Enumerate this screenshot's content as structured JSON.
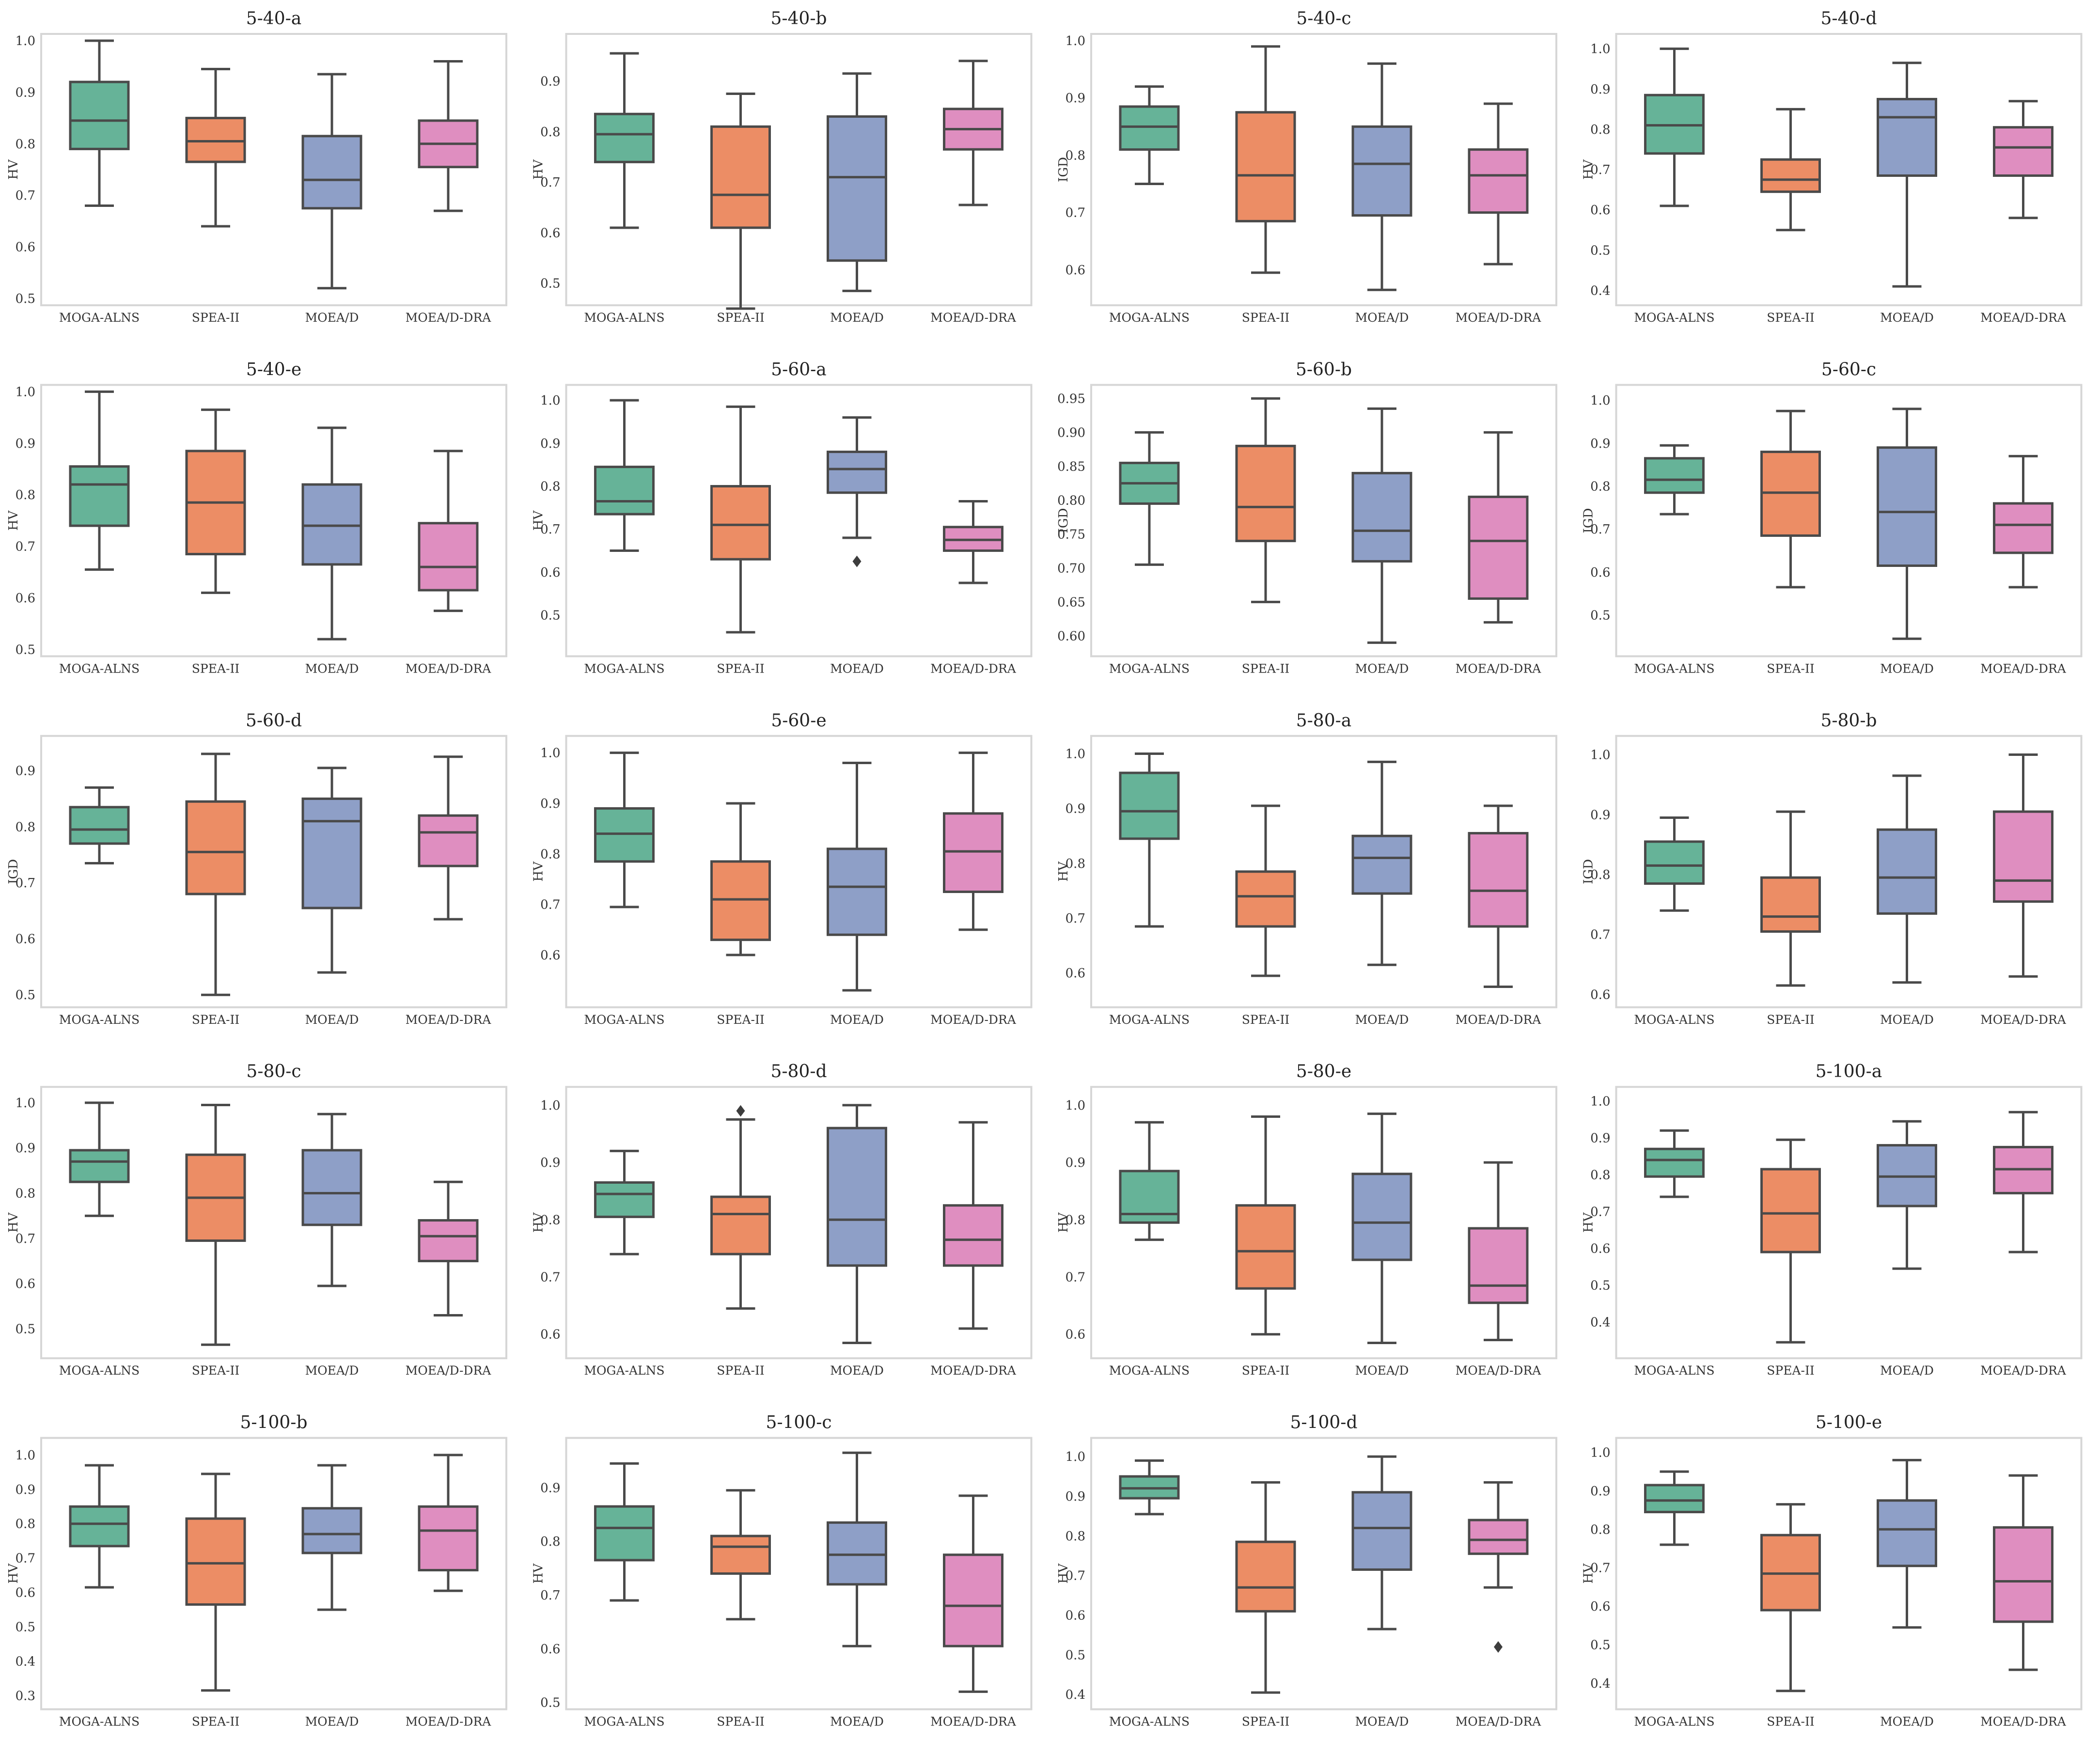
{
  "colors": {
    "MOGA-ALNS": "#66b398",
    "SPEA-II": "#ec8d65",
    "MOEA/D": "#8e9fc7",
    "MOEA/D-DRA": "#df8ec0"
  },
  "chart_data": [
    {
      "title": "5-40-a",
      "type": "box",
      "ylabel": "HV",
      "ylim": [
        0.5,
        1.0
      ],
      "yticks": [
        "0.5",
        "0.6",
        "0.7",
        "0.8",
        "0.9",
        "1.0"
      ],
      "categories": [
        "MOGA-ALNS",
        "SPEA-II",
        "MOEA/D",
        "MOEA/D-DRA"
      ],
      "boxes": [
        {
          "min": 0.68,
          "q1": 0.79,
          "median": 0.845,
          "q3": 0.92,
          "max": 1.0
        },
        {
          "min": 0.64,
          "q1": 0.765,
          "median": 0.805,
          "q3": 0.85,
          "max": 0.945
        },
        {
          "min": 0.52,
          "q1": 0.675,
          "median": 0.73,
          "q3": 0.815,
          "max": 0.935
        },
        {
          "min": 0.67,
          "q1": 0.755,
          "median": 0.8,
          "q3": 0.845,
          "max": 0.96
        }
      ],
      "outliers": []
    },
    {
      "title": "5-40-b",
      "type": "box",
      "ylabel": "HV",
      "ylim": [
        0.47,
        0.98
      ],
      "yticks": [
        "0.5",
        "0.6",
        "0.7",
        "0.8",
        "0.9"
      ],
      "categories": [
        "MOGA-ALNS",
        "SPEA-II",
        "MOEA/D",
        "MOEA/D-DRA"
      ],
      "boxes": [
        {
          "min": 0.61,
          "q1": 0.74,
          "median": 0.795,
          "q3": 0.835,
          "max": 0.955
        },
        {
          "min": 0.45,
          "q1": 0.61,
          "median": 0.675,
          "q3": 0.81,
          "max": 0.875
        },
        {
          "min": 0.485,
          "q1": 0.545,
          "median": 0.71,
          "q3": 0.83,
          "max": 0.915
        },
        {
          "min": 0.655,
          "q1": 0.765,
          "median": 0.805,
          "q3": 0.845,
          "max": 0.94
        }
      ],
      "outliers": []
    },
    {
      "title": "5-40-c",
      "type": "box",
      "ylabel": "IGD",
      "ylim": [
        0.55,
        1.0
      ],
      "yticks": [
        "0.6",
        "0.7",
        "0.8",
        "0.9",
        "1.0"
      ],
      "categories": [
        "MOGA-ALNS",
        "SPEA-II",
        "MOEA/D",
        "MOEA/D-DRA"
      ],
      "boxes": [
        {
          "min": 0.75,
          "q1": 0.81,
          "median": 0.85,
          "q3": 0.885,
          "max": 0.92
        },
        {
          "min": 0.595,
          "q1": 0.685,
          "median": 0.765,
          "q3": 0.875,
          "max": 0.99
        },
        {
          "min": 0.565,
          "q1": 0.695,
          "median": 0.785,
          "q3": 0.85,
          "max": 0.96
        },
        {
          "min": 0.61,
          "q1": 0.7,
          "median": 0.765,
          "q3": 0.81,
          "max": 0.89
        }
      ],
      "outliers": []
    },
    {
      "title": "5-40-d",
      "type": "box",
      "ylabel": "HV",
      "ylim": [
        0.38,
        1.02
      ],
      "yticks": [
        "0.4",
        "0.5",
        "0.6",
        "0.7",
        "0.8",
        "0.9",
        "1.0"
      ],
      "categories": [
        "MOGA-ALNS",
        "SPEA-II",
        "MOEA/D",
        "MOEA/D-DRA"
      ],
      "boxes": [
        {
          "min": 0.61,
          "q1": 0.74,
          "median": 0.81,
          "q3": 0.885,
          "max": 1.0
        },
        {
          "min": 0.55,
          "q1": 0.645,
          "median": 0.675,
          "q3": 0.725,
          "max": 0.85
        },
        {
          "min": 0.41,
          "q1": 0.685,
          "median": 0.83,
          "q3": 0.875,
          "max": 0.965
        },
        {
          "min": 0.58,
          "q1": 0.685,
          "median": 0.755,
          "q3": 0.805,
          "max": 0.87
        }
      ],
      "outliers": []
    },
    {
      "title": "5-40-e",
      "type": "box",
      "ylabel": "HV",
      "ylim": [
        0.5,
        1.0
      ],
      "yticks": [
        "0.5",
        "0.6",
        "0.7",
        "0.8",
        "0.9",
        "1.0"
      ],
      "categories": [
        "MOGA-ALNS",
        "SPEA-II",
        "MOEA/D",
        "MOEA/D-DRA"
      ],
      "boxes": [
        {
          "min": 0.655,
          "q1": 0.74,
          "median": 0.82,
          "q3": 0.855,
          "max": 1.0
        },
        {
          "min": 0.61,
          "q1": 0.685,
          "median": 0.785,
          "q3": 0.885,
          "max": 0.965
        },
        {
          "min": 0.52,
          "q1": 0.665,
          "median": 0.74,
          "q3": 0.82,
          "max": 0.93
        },
        {
          "min": 0.575,
          "q1": 0.615,
          "median": 0.66,
          "q3": 0.745,
          "max": 0.885
        }
      ],
      "outliers": []
    },
    {
      "title": "5-60-a",
      "type": "box",
      "ylabel": "HV",
      "ylim": [
        0.42,
        1.02
      ],
      "yticks": [
        "0.5",
        "0.6",
        "0.7",
        "0.8",
        "0.9",
        "1.0"
      ],
      "categories": [
        "MOGA-ALNS",
        "SPEA-II",
        "MOEA/D",
        "MOEA/D-DRA"
      ],
      "boxes": [
        {
          "min": 0.65,
          "q1": 0.735,
          "median": 0.765,
          "q3": 0.845,
          "max": 1.0
        },
        {
          "min": 0.46,
          "q1": 0.63,
          "median": 0.71,
          "q3": 0.8,
          "max": 0.985
        },
        {
          "min": 0.68,
          "q1": 0.785,
          "median": 0.84,
          "q3": 0.88,
          "max": 0.96
        },
        {
          "min": 0.575,
          "q1": 0.65,
          "median": 0.675,
          "q3": 0.705,
          "max": 0.765
        }
      ],
      "outliers": [
        {
          "series": "MOEA/D",
          "value": 0.625
        }
      ]
    },
    {
      "title": "5-60-b",
      "type": "box",
      "ylabel": "IGD",
      "ylim": [
        0.58,
        0.96
      ],
      "yticks": [
        "0.60",
        "0.65",
        "0.70",
        "0.75",
        "0.80",
        "0.85",
        "0.90",
        "0.95"
      ],
      "categories": [
        "MOGA-ALNS",
        "SPEA-II",
        "MOEA/D",
        "MOEA/D-DRA"
      ],
      "boxes": [
        {
          "min": 0.705,
          "q1": 0.795,
          "median": 0.825,
          "q3": 0.855,
          "max": 0.9
        },
        {
          "min": 0.65,
          "q1": 0.74,
          "median": 0.79,
          "q3": 0.88,
          "max": 0.95
        },
        {
          "min": 0.59,
          "q1": 0.71,
          "median": 0.755,
          "q3": 0.84,
          "max": 0.935
        },
        {
          "min": 0.62,
          "q1": 0.655,
          "median": 0.74,
          "q3": 0.805,
          "max": 0.9
        }
      ],
      "outliers": []
    },
    {
      "title": "5-60-c",
      "type": "box",
      "ylabel": "IGD",
      "ylim": [
        0.42,
        1.02
      ],
      "yticks": [
        "0.5",
        "0.6",
        "0.7",
        "0.8",
        "0.9",
        "1.0"
      ],
      "categories": [
        "MOGA-ALNS",
        "SPEA-II",
        "MOEA/D",
        "MOEA/D-DRA"
      ],
      "boxes": [
        {
          "min": 0.735,
          "q1": 0.785,
          "median": 0.815,
          "q3": 0.865,
          "max": 0.895
        },
        {
          "min": 0.565,
          "q1": 0.685,
          "median": 0.785,
          "q3": 0.88,
          "max": 0.975
        },
        {
          "min": 0.445,
          "q1": 0.615,
          "median": 0.74,
          "q3": 0.89,
          "max": 0.98
        },
        {
          "min": 0.565,
          "q1": 0.645,
          "median": 0.71,
          "q3": 0.76,
          "max": 0.87
        }
      ],
      "outliers": []
    },
    {
      "title": "5-60-d",
      "type": "box",
      "ylabel": "IGD",
      "ylim": [
        0.49,
        0.95
      ],
      "yticks": [
        "0.5",
        "0.6",
        "0.7",
        "0.8",
        "0.9"
      ],
      "categories": [
        "MOGA-ALNS",
        "SPEA-II",
        "MOEA/D",
        "MOEA/D-DRA"
      ],
      "boxes": [
        {
          "min": 0.735,
          "q1": 0.77,
          "median": 0.795,
          "q3": 0.835,
          "max": 0.87
        },
        {
          "min": 0.5,
          "q1": 0.68,
          "median": 0.755,
          "q3": 0.845,
          "max": 0.93
        },
        {
          "min": 0.54,
          "q1": 0.655,
          "median": 0.81,
          "q3": 0.85,
          "max": 0.905
        },
        {
          "min": 0.635,
          "q1": 0.73,
          "median": 0.79,
          "q3": 0.82,
          "max": 0.925
        }
      ],
      "outliers": []
    },
    {
      "title": "5-60-e",
      "type": "box",
      "ylabel": "HV",
      "ylim": [
        0.51,
        1.02
      ],
      "yticks": [
        "0.6",
        "0.7",
        "0.8",
        "0.9",
        "1.0"
      ],
      "categories": [
        "MOGA-ALNS",
        "SPEA-II",
        "MOEA/D",
        "MOEA/D-DRA"
      ],
      "boxes": [
        {
          "min": 0.695,
          "q1": 0.785,
          "median": 0.84,
          "q3": 0.89,
          "max": 1.0
        },
        {
          "min": 0.6,
          "q1": 0.63,
          "median": 0.71,
          "q3": 0.785,
          "max": 0.9
        },
        {
          "min": 0.53,
          "q1": 0.64,
          "median": 0.735,
          "q3": 0.81,
          "max": 0.98
        },
        {
          "min": 0.65,
          "q1": 0.725,
          "median": 0.805,
          "q3": 0.88,
          "max": 1.0
        }
      ],
      "outliers": []
    },
    {
      "title": "5-80-a",
      "type": "box",
      "ylabel": "HV",
      "ylim": [
        0.55,
        1.02
      ],
      "yticks": [
        "0.6",
        "0.7",
        "0.8",
        "0.9",
        "1.0"
      ],
      "categories": [
        "MOGA-ALNS",
        "SPEA-II",
        "MOEA/D",
        "MOEA/D-DRA"
      ],
      "boxes": [
        {
          "min": 0.685,
          "q1": 0.845,
          "median": 0.895,
          "q3": 0.965,
          "max": 1.0
        },
        {
          "min": 0.595,
          "q1": 0.685,
          "median": 0.74,
          "q3": 0.785,
          "max": 0.905
        },
        {
          "min": 0.615,
          "q1": 0.745,
          "median": 0.81,
          "q3": 0.85,
          "max": 0.985
        },
        {
          "min": 0.575,
          "q1": 0.685,
          "median": 0.75,
          "q3": 0.855,
          "max": 0.905
        }
      ],
      "outliers": []
    },
    {
      "title": "5-80-b",
      "type": "box",
      "ylabel": "IGD",
      "ylim": [
        0.59,
        1.02
      ],
      "yticks": [
        "0.6",
        "0.7",
        "0.8",
        "0.9",
        "1.0"
      ],
      "categories": [
        "MOGA-ALNS",
        "SPEA-II",
        "MOEA/D",
        "MOEA/D-DRA"
      ],
      "boxes": [
        {
          "min": 0.74,
          "q1": 0.785,
          "median": 0.815,
          "q3": 0.855,
          "max": 0.895
        },
        {
          "min": 0.615,
          "q1": 0.705,
          "median": 0.73,
          "q3": 0.795,
          "max": 0.905
        },
        {
          "min": 0.62,
          "q1": 0.735,
          "median": 0.795,
          "q3": 0.875,
          "max": 0.965
        },
        {
          "min": 0.63,
          "q1": 0.755,
          "median": 0.79,
          "q3": 0.905,
          "max": 1.0
        }
      ],
      "outliers": []
    },
    {
      "title": "5-80-c",
      "type": "box",
      "ylabel": "HV",
      "ylim": [
        0.45,
        1.02
      ],
      "yticks": [
        "0.5",
        "0.6",
        "0.7",
        "0.8",
        "0.9",
        "1.0"
      ],
      "categories": [
        "MOGA-ALNS",
        "SPEA-II",
        "MOEA/D",
        "MOEA/D-DRA"
      ],
      "boxes": [
        {
          "min": 0.75,
          "q1": 0.825,
          "median": 0.87,
          "q3": 0.895,
          "max": 1.0
        },
        {
          "min": 0.465,
          "q1": 0.695,
          "median": 0.79,
          "q3": 0.885,
          "max": 0.995
        },
        {
          "min": 0.595,
          "q1": 0.73,
          "median": 0.8,
          "q3": 0.895,
          "max": 0.975
        },
        {
          "min": 0.53,
          "q1": 0.65,
          "median": 0.705,
          "q3": 0.74,
          "max": 0.825
        }
      ],
      "outliers": []
    },
    {
      "title": "5-80-d",
      "type": "box",
      "ylabel": "HV",
      "ylim": [
        0.57,
        1.02
      ],
      "yticks": [
        "0.6",
        "0.7",
        "0.8",
        "0.9",
        "1.0"
      ],
      "categories": [
        "MOGA-ALNS",
        "SPEA-II",
        "MOEA/D",
        "MOEA/D-DRA"
      ],
      "boxes": [
        {
          "min": 0.74,
          "q1": 0.805,
          "median": 0.845,
          "q3": 0.865,
          "max": 0.92
        },
        {
          "min": 0.645,
          "q1": 0.74,
          "median": 0.81,
          "q3": 0.84,
          "max": 0.975
        },
        {
          "min": 0.585,
          "q1": 0.72,
          "median": 0.8,
          "q3": 0.96,
          "max": 1.0
        },
        {
          "min": 0.61,
          "q1": 0.72,
          "median": 0.765,
          "q3": 0.825,
          "max": 0.97
        }
      ],
      "outliers": [
        {
          "series": "SPEA-II",
          "value": 0.99
        }
      ]
    },
    {
      "title": "5-80-e",
      "type": "box",
      "ylabel": "HV",
      "ylim": [
        0.57,
        1.02
      ],
      "yticks": [
        "0.6",
        "0.7",
        "0.8",
        "0.9",
        "1.0"
      ],
      "categories": [
        "MOGA-ALNS",
        "SPEA-II",
        "MOEA/D",
        "MOEA/D-DRA"
      ],
      "boxes": [
        {
          "min": 0.765,
          "q1": 0.795,
          "median": 0.81,
          "q3": 0.885,
          "max": 0.97
        },
        {
          "min": 0.6,
          "q1": 0.68,
          "median": 0.745,
          "q3": 0.825,
          "max": 0.98
        },
        {
          "min": 0.585,
          "q1": 0.73,
          "median": 0.795,
          "q3": 0.88,
          "max": 0.985
        },
        {
          "min": 0.59,
          "q1": 0.655,
          "median": 0.685,
          "q3": 0.785,
          "max": 0.9
        }
      ],
      "outliers": []
    },
    {
      "title": "5-100-a",
      "type": "box",
      "ylabel": "HV",
      "ylim": [
        0.32,
        1.02
      ],
      "yticks": [
        "0.4",
        "0.5",
        "0.6",
        "0.7",
        "0.8",
        "0.9",
        "1.0"
      ],
      "categories": [
        "MOGA-ALNS",
        "SPEA-II",
        "MOEA/D",
        "MOEA/D-DRA"
      ],
      "boxes": [
        {
          "min": 0.74,
          "q1": 0.795,
          "median": 0.84,
          "q3": 0.87,
          "max": 0.92
        },
        {
          "min": 0.345,
          "q1": 0.59,
          "median": 0.695,
          "q3": 0.815,
          "max": 0.895
        },
        {
          "min": 0.545,
          "q1": 0.715,
          "median": 0.795,
          "q3": 0.88,
          "max": 0.945
        },
        {
          "min": 0.59,
          "q1": 0.75,
          "median": 0.815,
          "q3": 0.875,
          "max": 0.97
        }
      ],
      "outliers": []
    },
    {
      "title": "5-100-b",
      "type": "box",
      "ylabel": "HV",
      "ylim": [
        0.28,
        1.03
      ],
      "yticks": [
        "0.3",
        "0.4",
        "0.5",
        "0.6",
        "0.7",
        "0.8",
        "0.9",
        "1.0"
      ],
      "categories": [
        "MOGA-ALNS",
        "SPEA-II",
        "MOEA/D",
        "MOEA/D-DRA"
      ],
      "boxes": [
        {
          "min": 0.615,
          "q1": 0.735,
          "median": 0.8,
          "q3": 0.85,
          "max": 0.97
        },
        {
          "min": 0.315,
          "q1": 0.565,
          "median": 0.685,
          "q3": 0.815,
          "max": 0.945
        },
        {
          "min": 0.55,
          "q1": 0.715,
          "median": 0.77,
          "q3": 0.845,
          "max": 0.97
        },
        {
          "min": 0.605,
          "q1": 0.665,
          "median": 0.78,
          "q3": 0.85,
          "max": 1.0
        }
      ],
      "outliers": []
    },
    {
      "title": "5-100-c",
      "type": "box",
      "ylabel": "HV",
      "ylim": [
        0.5,
        0.98
      ],
      "yticks": [
        "0.5",
        "0.6",
        "0.7",
        "0.8",
        "0.9"
      ],
      "categories": [
        "MOGA-ALNS",
        "SPEA-II",
        "MOEA/D",
        "MOEA/D-DRA"
      ],
      "boxes": [
        {
          "min": 0.69,
          "q1": 0.765,
          "median": 0.825,
          "q3": 0.865,
          "max": 0.945
        },
        {
          "min": 0.655,
          "q1": 0.74,
          "median": 0.79,
          "q3": 0.81,
          "max": 0.895
        },
        {
          "min": 0.605,
          "q1": 0.72,
          "median": 0.775,
          "q3": 0.835,
          "max": 0.965
        },
        {
          "min": 0.52,
          "q1": 0.605,
          "median": 0.68,
          "q3": 0.775,
          "max": 0.885
        }
      ],
      "outliers": []
    },
    {
      "title": "5-100-d",
      "type": "box",
      "ylabel": "HV",
      "ylim": [
        0.38,
        1.03
      ],
      "yticks": [
        "0.4",
        "0.5",
        "0.6",
        "0.7",
        "0.8",
        "0.9",
        "1.0"
      ],
      "categories": [
        "MOGA-ALNS",
        "SPEA-II",
        "MOEA/D",
        "MOEA/D-DRA"
      ],
      "boxes": [
        {
          "min": 0.855,
          "q1": 0.895,
          "median": 0.92,
          "q3": 0.95,
          "max": 0.99
        },
        {
          "min": 0.405,
          "q1": 0.61,
          "median": 0.67,
          "q3": 0.785,
          "max": 0.935
        },
        {
          "min": 0.565,
          "q1": 0.715,
          "median": 0.82,
          "q3": 0.91,
          "max": 1.0
        },
        {
          "min": 0.67,
          "q1": 0.755,
          "median": 0.79,
          "q3": 0.84,
          "max": 0.935
        }
      ],
      "outliers": [
        {
          "series": "MOEA/D-DRA",
          "value": 0.52
        }
      ]
    },
    {
      "title": "5-100-e",
      "type": "box",
      "ylabel": "HV",
      "ylim": [
        0.35,
        1.02
      ],
      "yticks": [
        "0.4",
        "0.5",
        "0.6",
        "0.7",
        "0.8",
        "0.9",
        "1.0"
      ],
      "categories": [
        "MOGA-ALNS",
        "SPEA-II",
        "MOEA/D",
        "MOEA/D-DRA"
      ],
      "boxes": [
        {
          "min": 0.76,
          "q1": 0.845,
          "median": 0.875,
          "q3": 0.915,
          "max": 0.95
        },
        {
          "min": 0.38,
          "q1": 0.59,
          "median": 0.685,
          "q3": 0.785,
          "max": 0.865
        },
        {
          "min": 0.545,
          "q1": 0.705,
          "median": 0.8,
          "q3": 0.875,
          "max": 0.98
        },
        {
          "min": 0.435,
          "q1": 0.56,
          "median": 0.665,
          "q3": 0.805,
          "max": 0.94
        }
      ],
      "outliers": []
    }
  ]
}
